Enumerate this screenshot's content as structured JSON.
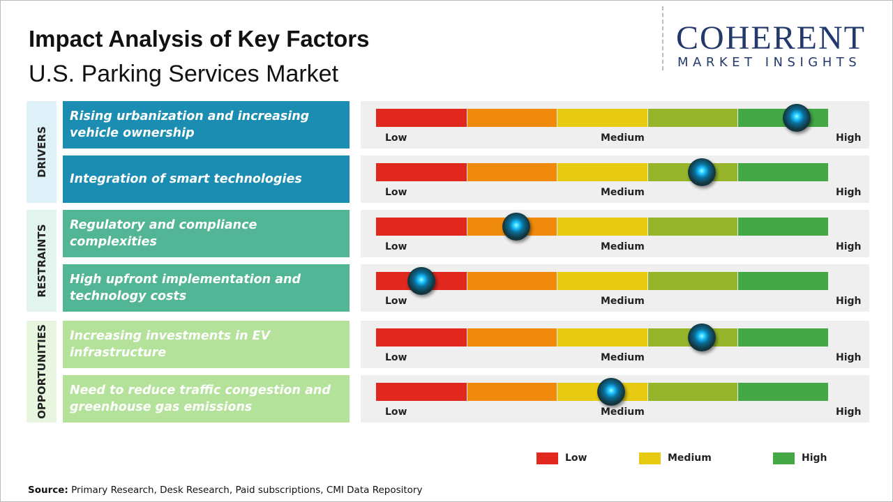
{
  "header": {
    "title": "Impact Analysis of Key Factors",
    "subtitle": "U.S. Parking Services Market"
  },
  "logo": {
    "name": "COHERENT",
    "tagline": "MARKET INSIGHTS"
  },
  "gauge": {
    "range": [
      0,
      100
    ],
    "colors": [
      "#e0281f",
      "#ef8a0c",
      "#e6cb12",
      "#97b52a",
      "#44a847"
    ],
    "labels": {
      "low": "Low",
      "medium": "Medium",
      "high": "High"
    }
  },
  "groups": [
    {
      "label": "DRIVERS",
      "color": "#1b8db3",
      "tint": "#dff1f8",
      "factors": [
        {
          "text": "Rising urbanization and increasing vehicle ownership",
          "level": 93
        },
        {
          "text": "Integration of smart technologies",
          "level": 72
        }
      ]
    },
    {
      "label": "RESTRAINTS",
      "color": "#52b596",
      "tint": "#e3f4ee",
      "factors": [
        {
          "text": "Regulatory and compliance complexities",
          "level": 31
        },
        {
          "text": "High upfront implementation and technology costs",
          "level": 10
        }
      ]
    },
    {
      "label": "OPPORTUNITIES",
      "color": "#b5e29a",
      "tint": "#e9f6df",
      "factors": [
        {
          "text": "Increasing investments in EV infrastructure",
          "level": 72
        },
        {
          "text": "Need to reduce traffic congestion and greenhouse gas emissions",
          "level": 52
        }
      ]
    }
  ],
  "legend": [
    {
      "label": "Low",
      "color": "#e0281f"
    },
    {
      "label": "Medium",
      "color": "#e6cb12"
    },
    {
      "label": "High",
      "color": "#44a847"
    }
  ],
  "source": {
    "label": "Source:",
    "text": "Primary Research, Desk Research, Paid subscriptions, CMI Data Repository"
  }
}
